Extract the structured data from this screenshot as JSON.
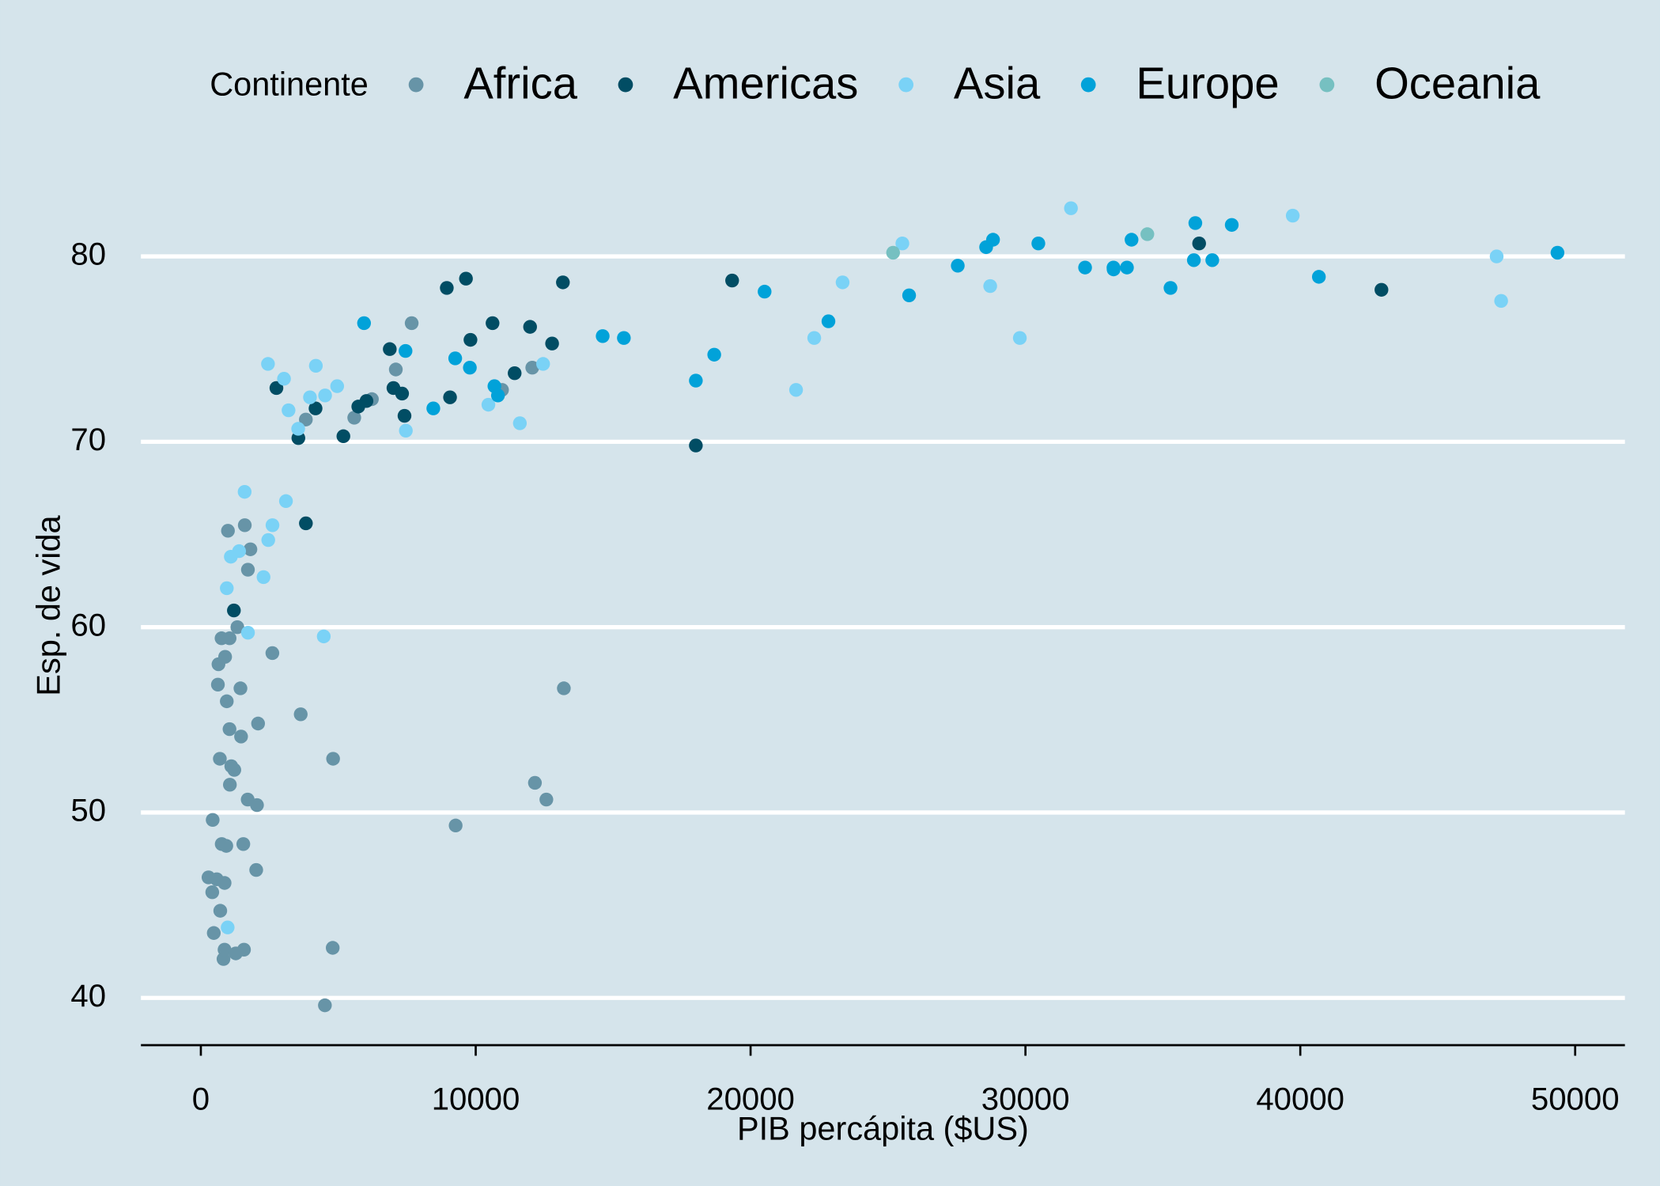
{
  "chart_data": {
    "type": "scatter",
    "x_label": "PIB percápita ($US)",
    "y_label": "Esp. de vida",
    "legend_title": "Continente",
    "legend_position": "top",
    "xlim": [
      -2180,
      51810
    ],
    "ylim": [
      37.45,
      84.75
    ],
    "xticks": [
      0,
      10000,
      20000,
      30000,
      40000,
      50000
    ],
    "yticks": [
      40,
      50,
      60,
      70,
      80
    ],
    "grid": true,
    "series": [
      {
        "name": "Africa",
        "color": "#6794a7",
        "x": [
          6223,
          4797,
          1441,
          12570,
          1217,
          430,
          2042,
          706,
          1704,
          986,
          278,
          3633,
          1545,
          2082,
          5581,
          12154,
          641,
          691,
          13206,
          753,
          1328,
          943,
          579,
          1463,
          1569,
          415,
          12058,
          1045,
          759,
          1043,
          1803,
          10957,
          3820,
          824,
          4811,
          620,
          2014,
          7670,
          863,
          1598,
          1712,
          862,
          926,
          9270,
          2602,
          4513,
          1107,
          883,
          7093,
          1056,
          1271,
          470
        ],
        "values": [
          72.3,
          42.7,
          56.7,
          50.7,
          52.3,
          49.6,
          50.4,
          44.7,
          50.7,
          65.2,
          46.5,
          55.3,
          48.3,
          54.8,
          71.3,
          51.6,
          58.0,
          52.9,
          56.7,
          59.4,
          60.0,
          56.0,
          46.4,
          54.1,
          42.6,
          45.7,
          74.0,
          59.4,
          48.3,
          54.5,
          64.2,
          72.8,
          71.2,
          42.1,
          52.9,
          56.9,
          46.9,
          76.4,
          46.2,
          65.5,
          63.1,
          42.6,
          48.2,
          49.3,
          58.6,
          39.6,
          52.5,
          58.4,
          73.9,
          51.5,
          42.4,
          43.5
        ]
      },
      {
        "name": "Americas",
        "color": "#014d64",
        "x": [
          12779,
          3822,
          9066,
          36319,
          13172,
          7007,
          9645,
          8948,
          6025,
          6873,
          5728,
          5186,
          1202,
          3548,
          7321,
          11978,
          2749,
          9809,
          4173,
          7409,
          19329,
          18009,
          42952,
          10612,
          11416
        ],
        "values": [
          75.3,
          65.6,
          72.4,
          80.7,
          78.6,
          72.9,
          78.8,
          78.3,
          72.2,
          75.0,
          71.9,
          70.3,
          60.9,
          70.2,
          72.6,
          76.2,
          72.9,
          75.5,
          71.8,
          71.4,
          78.7,
          69.8,
          78.2,
          76.4,
          73.7
        ]
      },
      {
        "name": "Asia",
        "color": "#7ad2f6",
        "x": [
          975,
          29796,
          1391,
          1714,
          4959,
          39725,
          2452,
          3541,
          11606,
          4471,
          25523,
          31656,
          4520,
          1593,
          23348,
          47307,
          10461,
          12452,
          3096,
          944,
          1091,
          22316,
          2606,
          3190,
          21655,
          47143,
          3970,
          4184,
          28718,
          7458,
          2442,
          3025,
          2281
        ],
        "values": [
          43.8,
          75.6,
          64.1,
          59.7,
          73.0,
          82.2,
          64.7,
          70.7,
          71.0,
          59.5,
          80.7,
          82.6,
          72.5,
          67.3,
          78.6,
          77.6,
          72.0,
          74.2,
          66.8,
          62.1,
          63.8,
          75.6,
          65.5,
          71.7,
          72.8,
          80.0,
          72.4,
          74.1,
          78.4,
          70.6,
          74.2,
          73.4,
          62.7
        ]
      },
      {
        "name": "Europe",
        "color": "#01a2d9",
        "x": [
          5937,
          36127,
          33693,
          7446,
          10681,
          14619,
          22833,
          35278,
          33207,
          30470,
          32170,
          27538,
          18009,
          36181,
          40676,
          28570,
          9254,
          36798,
          49357,
          15390,
          20510,
          10809,
          9787,
          18678,
          25768,
          28821,
          33860,
          37506,
          8458,
          33203
        ],
        "values": [
          76.4,
          79.8,
          79.4,
          74.9,
          73.0,
          75.7,
          76.5,
          78.3,
          79.3,
          80.7,
          79.4,
          79.5,
          73.3,
          81.8,
          78.9,
          80.5,
          74.5,
          79.8,
          80.2,
          75.6,
          78.1,
          72.5,
          74.0,
          74.7,
          77.9,
          80.9,
          80.9,
          81.7,
          71.8,
          79.4
        ]
      },
      {
        "name": "Oceania",
        "color": "#76c0c1",
        "x": [
          34435,
          25185
        ],
        "values": [
          81.2,
          80.2
        ]
      }
    ]
  }
}
